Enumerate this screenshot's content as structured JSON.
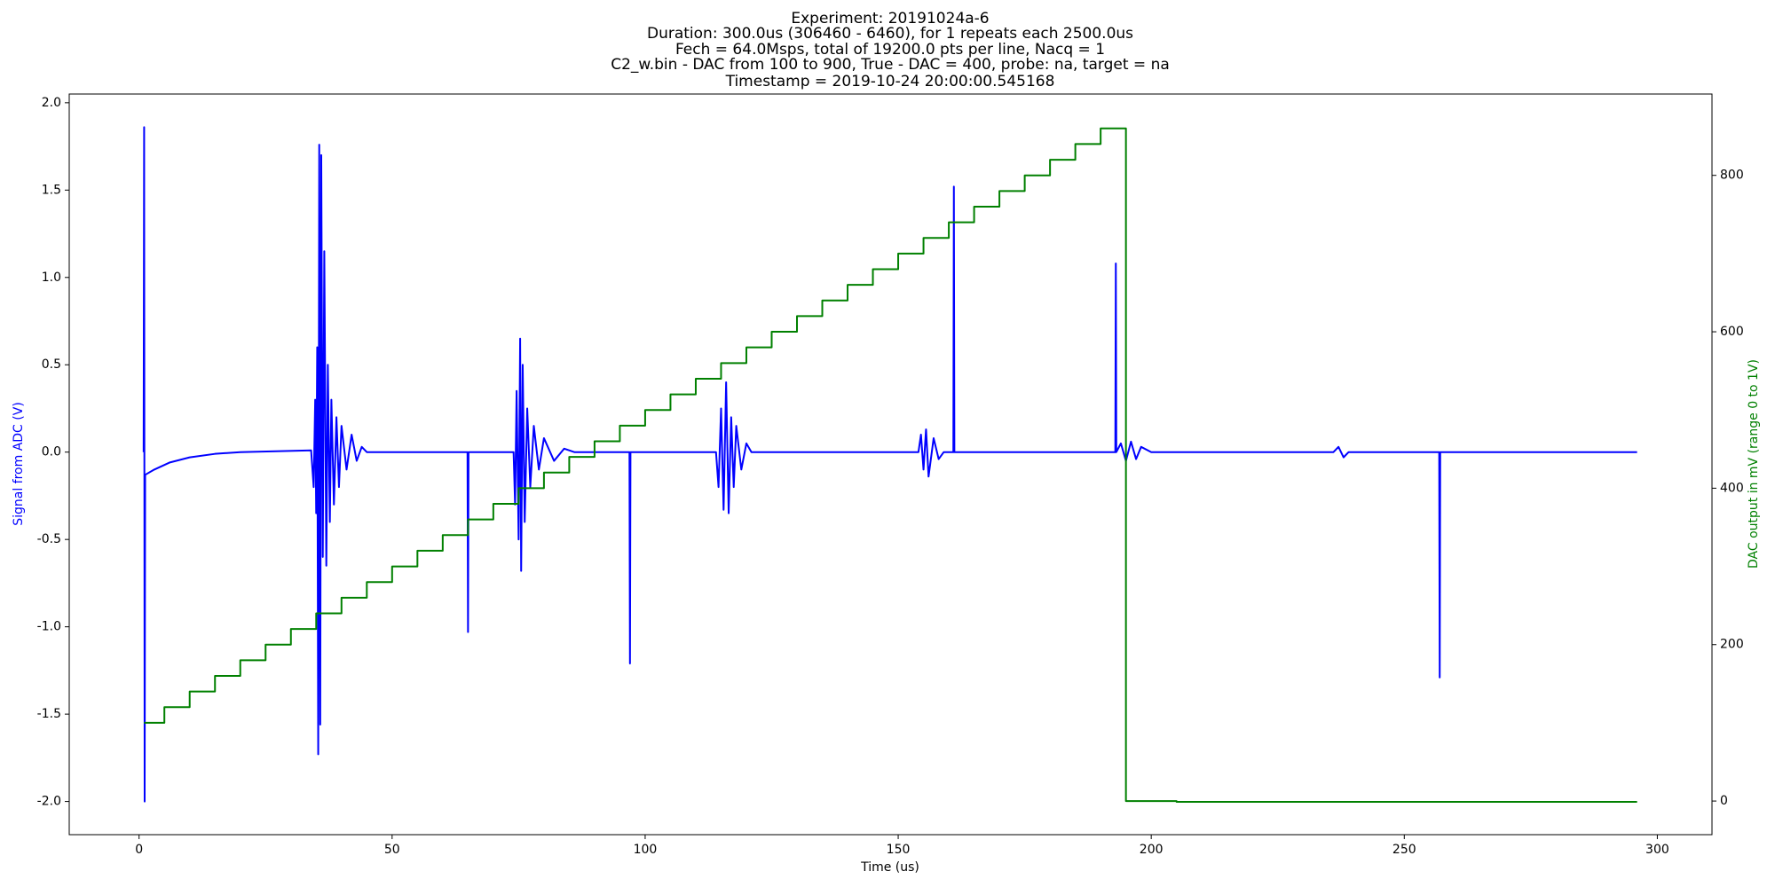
{
  "chart_data": {
    "type": "line",
    "title": [
      "Experiment: 20191024a-6",
      "Duration: 300.0us (306460 - 6460), for 1 repeats each 2500.0us",
      "Fech = 64.0Msps, total of 19200.0 pts per line, Nacq = 1",
      "C2_w.bin - DAC from 100 to 900, True - DAC = 400, probe: na, target = na",
      "Timestamp = 2019-10-24 20:00:00.545168"
    ],
    "xlabel": "Time (us)",
    "ylabel": "Signal from ADC (V)",
    "y2label": "DAC output in mV (range 0 to 1V)",
    "ylabel_color": "#0000ff",
    "y2label_color": "#008000",
    "xlim": [
      -13.8,
      310.8
    ],
    "ylim": [
      -2.19,
      2.05
    ],
    "y2lim": [
      -43,
      904
    ],
    "xticks": [
      0,
      50,
      100,
      150,
      200,
      250,
      300
    ],
    "yticks": [
      {
        "value": -2,
        "label": "-2.0"
      },
      -1.5,
      {
        "value": -1,
        "label": "-1.0"
      },
      -0.5,
      {
        "value": 0,
        "label": "0.0"
      },
      0.5,
      {
        "value": 1,
        "label": "1.0"
      },
      1.5,
      {
        "value": 2,
        "label": "2.0"
      }
    ],
    "y2ticks": [
      0,
      200,
      400,
      600,
      800
    ],
    "grid": false,
    "series": [
      {
        "color": "#0000ff",
        "axis": "y",
        "x": [
          0.9,
          1.0,
          1.1,
          1.2,
          3,
          6,
          10,
          15,
          20,
          34,
          34.5,
          34.8,
          35.0,
          35.2,
          35.4,
          35.6,
          35.8,
          36.0,
          36.3,
          36.6,
          37,
          37.3,
          37.7,
          38,
          38.5,
          39,
          39.5,
          40,
          41,
          42,
          43,
          44,
          45,
          64.9,
          65,
          65.1,
          74,
          74.3,
          74.6,
          75,
          75.3,
          75.5,
          75.8,
          76.2,
          76.7,
          77.3,
          78,
          79,
          80,
          82,
          84,
          86,
          96.9,
          97,
          97.1,
          114,
          114.5,
          115,
          115.5,
          116,
          116.5,
          117,
          117.5,
          118,
          119,
          120,
          121,
          154,
          154.5,
          155,
          155.5,
          156,
          157,
          158,
          159,
          160.9,
          161,
          161.1,
          163,
          192.9,
          193,
          193.1,
          194,
          195,
          196,
          197,
          198,
          200,
          236,
          237,
          238,
          239,
          256.9,
          257,
          257.1,
          296
        ],
        "values": [
          0,
          1.86,
          -2.0,
          -0.13,
          -0.1,
          -0.06,
          -0.03,
          -0.01,
          0,
          0.01,
          -0.2,
          0.3,
          -0.35,
          0.6,
          -1.73,
          1.76,
          -1.56,
          1.7,
          -0.6,
          1.15,
          -0.65,
          0.5,
          -0.4,
          0.3,
          -0.3,
          0.2,
          -0.2,
          0.15,
          -0.1,
          0.1,
          -0.05,
          0.03,
          0,
          0,
          -1.03,
          0,
          0,
          -0.3,
          0.35,
          -0.5,
          0.65,
          -0.68,
          0.5,
          -0.4,
          0.25,
          -0.2,
          0.15,
          -0.1,
          0.08,
          -0.05,
          0.02,
          0,
          0,
          -1.21,
          0,
          0,
          -0.2,
          0.25,
          -0.33,
          0.4,
          -0.35,
          0.2,
          -0.2,
          0.15,
          -0.1,
          0.05,
          0,
          0,
          0.1,
          -0.1,
          0.13,
          -0.14,
          0.08,
          -0.04,
          0,
          0,
          1.52,
          0,
          0,
          0,
          1.08,
          0,
          0.05,
          -0.05,
          0.06,
          -0.04,
          0.03,
          0,
          0,
          0.03,
          -0.03,
          0,
          0,
          -1.29,
          0,
          0
        ]
      },
      {
        "color": "#008000",
        "axis": "y2",
        "step": "post",
        "x": [
          1,
          5,
          10,
          15,
          20,
          25,
          30,
          35,
          40,
          45,
          50,
          55,
          60,
          65,
          70,
          75,
          80,
          85,
          90,
          95,
          100,
          105,
          110,
          115,
          120,
          125,
          130,
          135,
          140,
          145,
          150,
          155,
          160,
          165,
          170,
          175,
          180,
          185,
          190,
          195,
          205,
          296
        ],
        "values": [
          100,
          120,
          140,
          160,
          180,
          200,
          220,
          240,
          260,
          280,
          300,
          320,
          340,
          360,
          380,
          400,
          420,
          440,
          460,
          480,
          500,
          520,
          540,
          560,
          580,
          600,
          620,
          640,
          660,
          680,
          700,
          720,
          740,
          760,
          780,
          800,
          820,
          840,
          860,
          0,
          -1,
          -1
        ]
      }
    ]
  }
}
